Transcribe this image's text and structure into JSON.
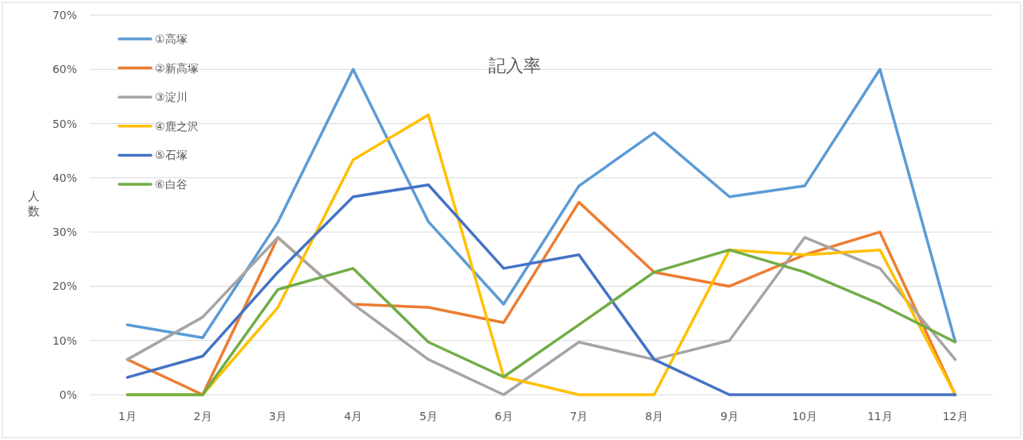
{
  "chart_data": {
    "type": "line",
    "title": "記入率",
    "ylabel": "人数",
    "categories": [
      "1月",
      "2月",
      "3月",
      "4月",
      "5月",
      "6月",
      "7月",
      "8月",
      "9月",
      "10月",
      "11月",
      "12月"
    ],
    "series": [
      {
        "name": "①高塚",
        "color": "#5b9bd5",
        "values": [
          12.9,
          10.5,
          31.8,
          60,
          31.9,
          16.7,
          38.5,
          48.3,
          36.5,
          38.5,
          60,
          9.8
        ]
      },
      {
        "name": "②新高塚",
        "color": "#ed7d31",
        "values": [
          6.5,
          0,
          29,
          16.7,
          16.1,
          13.3,
          35.5,
          22.6,
          20,
          25.8,
          30,
          0
        ]
      },
      {
        "name": "③淀川",
        "color": "#a5a5a5",
        "values": [
          6.5,
          14.3,
          29,
          16.7,
          6.5,
          0,
          9.7,
          6.5,
          10,
          29,
          23.3,
          6.5
        ]
      },
      {
        "name": "④鹿之沢",
        "color": "#ffc000",
        "values": [
          0,
          0,
          16.1,
          43.3,
          51.6,
          3.3,
          0,
          0,
          26.7,
          25.8,
          26.7,
          0
        ]
      },
      {
        "name": "⑤石塚",
        "color": "#4472c4",
        "values": [
          3.2,
          7.1,
          22.6,
          36.5,
          38.7,
          23.3,
          25.8,
          6.5,
          0,
          0,
          0,
          0
        ]
      },
      {
        "name": "⑥白谷",
        "color": "#70ad47",
        "values": [
          0,
          0,
          19.4,
          23.3,
          9.7,
          3.3,
          12.9,
          22.6,
          26.7,
          22.6,
          16.7,
          9.7
        ]
      }
    ],
    "ylim": [
      0,
      70
    ],
    "yticks": [
      {
        "value": 0,
        "label": "0%"
      },
      {
        "value": 10,
        "label": "10%"
      },
      {
        "value": 20,
        "label": "20%"
      },
      {
        "value": 30,
        "label": "30%"
      },
      {
        "value": 40,
        "label": "40%"
      },
      {
        "value": 50,
        "label": "50%"
      },
      {
        "value": 60,
        "label": "60%"
      },
      {
        "value": 70,
        "label": "70%"
      }
    ],
    "grid": "y",
    "legend": "top left",
    "marker": "none",
    "line_style": "solid"
  }
}
